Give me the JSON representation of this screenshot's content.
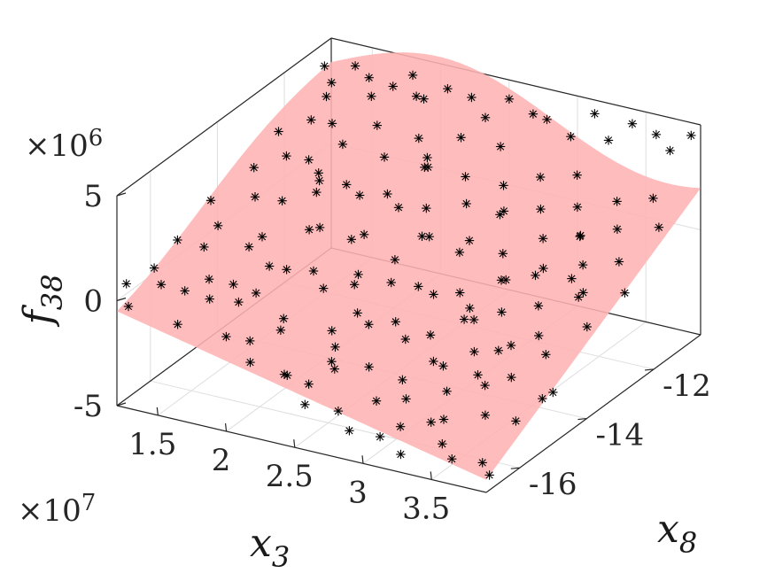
{
  "chart_data": {
    "type": "scatter",
    "title": "",
    "xlabel": {
      "base": "x",
      "sub": "3"
    },
    "ylabel": {
      "base": "x",
      "sub": "8"
    },
    "zlabel": {
      "base": "f",
      "sub": "38"
    },
    "x_multiplier": "×10^7",
    "z_multiplier": "×10^6",
    "x_multiplier_text": {
      "base": "×10",
      "exp": "7"
    },
    "z_multiplier_text": {
      "base": "×10",
      "exp": "6"
    },
    "xlim": [
      1.2,
      3.9
    ],
    "ylim": [
      -17,
      -10.6
    ],
    "zlim": [
      -5,
      5
    ],
    "x_ticks": [
      1.5,
      2,
      2.5,
      3,
      3.5
    ],
    "x_tick_labels": [
      "1.5",
      "2",
      "2.5",
      "3",
      "3.5"
    ],
    "y_ticks": [
      -16,
      -14,
      -12
    ],
    "y_tick_labels": [
      "-16",
      "-14",
      "-12"
    ],
    "z_ticks": [
      -5,
      0,
      5
    ],
    "z_tick_labels": [
      "-5",
      "0",
      "5"
    ],
    "grid": true,
    "marker": "asterisk",
    "marker_color": "#000000",
    "surface_color": "#ffb3b3",
    "series": [
      {
        "kind": "scatter",
        "points": [
          [
            1.22,
            -16.8,
            0.6
          ],
          [
            1.26,
            -16.9,
            -0.3
          ],
          [
            1.35,
            -16.5,
            1.2
          ],
          [
            1.45,
            -16.7,
            0.8
          ],
          [
            1.55,
            -16.4,
            0.3
          ],
          [
            1.62,
            -16.9,
            -0.6
          ],
          [
            1.78,
            -16.6,
            0.5
          ],
          [
            1.88,
            -16.3,
            1.0
          ],
          [
            1.95,
            -16.8,
            -0.8
          ],
          [
            2.05,
            -16.5,
            -1.2
          ],
          [
            2.15,
            -16.9,
            -1.6
          ],
          [
            2.25,
            -16.4,
            -0.5
          ],
          [
            2.35,
            -16.7,
            -2.1
          ],
          [
            2.48,
            -16.5,
            -2.6
          ],
          [
            2.55,
            -16.9,
            -3.0
          ],
          [
            2.62,
            -16.3,
            -1.9
          ],
          [
            2.72,
            -16.6,
            -3.4
          ],
          [
            2.85,
            -16.8,
            -3.9
          ],
          [
            2.95,
            -16.4,
            -2.8
          ],
          [
            3.05,
            -16.7,
            -4.0
          ],
          [
            3.15,
            -16.5,
            -3.6
          ],
          [
            3.25,
            -16.9,
            -4.3
          ],
          [
            3.35,
            -16.4,
            -3.2
          ],
          [
            3.48,
            -16.6,
            -3.8
          ],
          [
            3.6,
            -16.8,
            -4.1
          ],
          [
            3.75,
            -16.5,
            -4.4
          ],
          [
            3.85,
            -16.7,
            -4.6
          ],
          [
            1.3,
            -15.6,
            1.4
          ],
          [
            1.42,
            -15.3,
            0.9
          ],
          [
            1.58,
            -15.8,
            0.2
          ],
          [
            1.7,
            -15.1,
            1.1
          ],
          [
            1.85,
            -15.5,
            -0.4
          ],
          [
            2.0,
            -15.2,
            0.6
          ],
          [
            2.1,
            -15.7,
            -1.0
          ],
          [
            2.22,
            -15.0,
            -0.2
          ],
          [
            2.38,
            -15.4,
            -1.5
          ],
          [
            2.5,
            -15.9,
            -2.2
          ],
          [
            2.6,
            -15.2,
            -1.1
          ],
          [
            2.7,
            -15.6,
            -2.5
          ],
          [
            2.82,
            -15.0,
            -1.7
          ],
          [
            2.92,
            -15.5,
            -2.9
          ],
          [
            3.02,
            -15.8,
            -3.3
          ],
          [
            3.12,
            -15.1,
            -2.4
          ],
          [
            3.22,
            -15.4,
            -3.1
          ],
          [
            3.32,
            -15.9,
            -3.7
          ],
          [
            3.45,
            -15.2,
            -2.7
          ],
          [
            3.55,
            -15.6,
            -3.5
          ],
          [
            3.7,
            -15.3,
            -3.9
          ],
          [
            3.82,
            -15.0,
            -3.0
          ],
          [
            1.25,
            -14.4,
            1.8
          ],
          [
            1.4,
            -14.8,
            1.3
          ],
          [
            1.5,
            -14.1,
            2.0
          ],
          [
            1.65,
            -14.5,
            0.8
          ],
          [
            1.8,
            -14.9,
            0.1
          ],
          [
            1.92,
            -14.2,
            1.2
          ],
          [
            2.05,
            -14.6,
            -0.1
          ],
          [
            2.18,
            -14.0,
            0.9
          ],
          [
            2.3,
            -14.4,
            -0.6
          ],
          [
            2.42,
            -14.8,
            -1.3
          ],
          [
            2.52,
            -14.2,
            -0.4
          ],
          [
            2.65,
            -14.6,
            -1.6
          ],
          [
            2.78,
            -14.0,
            -0.8
          ],
          [
            2.88,
            -14.5,
            -2.0
          ],
          [
            3.0,
            -14.9,
            -2.6
          ],
          [
            3.1,
            -14.1,
            -1.4
          ],
          [
            3.2,
            -14.5,
            -2.3
          ],
          [
            3.3,
            -14.8,
            -2.9
          ],
          [
            3.42,
            -14.3,
            -1.9
          ],
          [
            3.52,
            -14.7,
            -2.8
          ],
          [
            3.65,
            -14.2,
            -2.1
          ],
          [
            3.8,
            -14.6,
            -3.2
          ],
          [
            1.32,
            -13.4,
            2.3
          ],
          [
            1.46,
            -13.0,
            2.6
          ],
          [
            1.6,
            -13.7,
            1.5
          ],
          [
            1.75,
            -13.2,
            2.1
          ],
          [
            1.9,
            -13.8,
            0.8
          ],
          [
            2.02,
            -13.1,
            1.7
          ],
          [
            2.15,
            -13.5,
            0.5
          ],
          [
            2.28,
            -13.0,
            1.4
          ],
          [
            2.4,
            -13.6,
            -0.2
          ],
          [
            2.5,
            -13.2,
            0.6
          ],
          [
            2.62,
            -13.8,
            -0.9
          ],
          [
            2.75,
            -13.1,
            0.1
          ],
          [
            2.85,
            -13.5,
            -1.2
          ],
          [
            2.98,
            -13.9,
            -1.8
          ],
          [
            3.08,
            -13.2,
            -0.6
          ],
          [
            3.18,
            -13.6,
            -1.5
          ],
          [
            3.28,
            -13.0,
            -0.3
          ],
          [
            3.4,
            -13.4,
            -1.1
          ],
          [
            3.5,
            -13.8,
            -1.9
          ],
          [
            3.62,
            -13.1,
            -0.7
          ],
          [
            3.78,
            -13.5,
            -1.4
          ],
          [
            1.28,
            -12.5,
            2.9
          ],
          [
            1.42,
            -12.1,
            3.2
          ],
          [
            1.55,
            -12.7,
            2.2
          ],
          [
            1.7,
            -12.3,
            2.7
          ],
          [
            1.85,
            -12.8,
            1.6
          ],
          [
            1.98,
            -12.2,
            2.4
          ],
          [
            2.1,
            -12.6,
            1.3
          ],
          [
            2.25,
            -12.0,
            2.1
          ],
          [
            2.36,
            -12.5,
            0.9
          ],
          [
            2.48,
            -12.9,
            0.2
          ],
          [
            2.58,
            -12.2,
            1.1
          ],
          [
            2.7,
            -12.6,
            0.0
          ],
          [
            2.8,
            -12.1,
            0.8
          ],
          [
            2.92,
            -12.5,
            -0.4
          ],
          [
            3.04,
            -12.9,
            -1.0
          ],
          [
            3.14,
            -12.2,
            0.3
          ],
          [
            3.24,
            -12.6,
            -0.5
          ],
          [
            3.36,
            -12.0,
            0.5
          ],
          [
            3.48,
            -12.4,
            -0.2
          ],
          [
            3.58,
            -12.8,
            -0.9
          ],
          [
            3.72,
            -12.3,
            0.2
          ],
          [
            3.86,
            -12.7,
            -0.6
          ],
          [
            1.36,
            -11.4,
            3.4
          ],
          [
            1.5,
            -11.8,
            2.8
          ],
          [
            1.64,
            -11.2,
            3.6
          ],
          [
            1.78,
            -11.6,
            2.9
          ],
          [
            1.92,
            -11.0,
            3.8
          ],
          [
            2.06,
            -11.5,
            2.6
          ],
          [
            2.2,
            -11.9,
            1.9
          ],
          [
            2.32,
            -11.3,
            2.8
          ],
          [
            2.45,
            -11.7,
            1.6
          ],
          [
            2.56,
            -11.1,
            2.5
          ],
          [
            2.68,
            -11.5,
            1.3
          ],
          [
            2.78,
            -11.9,
            0.7
          ],
          [
            2.9,
            -11.3,
            1.8
          ],
          [
            3.0,
            -11.7,
            0.9
          ],
          [
            3.12,
            -11.1,
            2.0
          ],
          [
            3.22,
            -11.5,
            1.1
          ],
          [
            3.34,
            -11.9,
            0.4
          ],
          [
            3.46,
            -11.3,
            1.5
          ],
          [
            3.56,
            -11.7,
            0.8
          ],
          [
            3.7,
            -11.2,
            1.9
          ],
          [
            3.84,
            -11.6,
            1.2
          ],
          [
            1.2,
            -10.8,
            3.9
          ],
          [
            1.3,
            -11.0,
            3.5
          ],
          [
            1.4,
            -10.7,
            4.1
          ],
          [
            1.55,
            -10.9,
            4.0
          ],
          [
            1.7,
            -10.8,
            3.7
          ],
          [
            1.82,
            -10.7,
            4.3
          ],
          [
            1.95,
            -10.9,
            3.6
          ],
          [
            2.1,
            -10.8,
            4.2
          ],
          [
            2.25,
            -10.7,
            3.9
          ],
          [
            2.4,
            -10.9,
            3.4
          ],
          [
            2.55,
            -10.8,
            4.4
          ],
          [
            2.7,
            -10.7,
            3.8
          ],
          [
            2.85,
            -10.9,
            4.0
          ],
          [
            3.0,
            -10.8,
            3.3
          ],
          [
            3.15,
            -10.7,
            4.5
          ],
          [
            3.3,
            -10.9,
            3.7
          ],
          [
            3.45,
            -10.8,
            4.6
          ],
          [
            3.6,
            -10.7,
            4.2
          ],
          [
            3.75,
            -10.9,
            3.9
          ],
          [
            3.88,
            -10.8,
            4.7
          ],
          [
            1.6,
            -15.0,
            -1.8
          ],
          [
            2.2,
            -16.0,
            -3.2
          ],
          [
            2.8,
            -13.0,
            -2.6
          ],
          [
            3.3,
            -12.0,
            -1.6
          ],
          [
            1.45,
            -12.0,
            0.6
          ],
          [
            2.0,
            -11.0,
            1.0
          ],
          [
            2.6,
            -16.2,
            -1.0
          ],
          [
            3.5,
            -15.0,
            -1.2
          ],
          [
            1.9,
            -13.9,
            2.6
          ],
          [
            2.45,
            -14.9,
            0.7
          ]
        ]
      }
    ]
  }
}
